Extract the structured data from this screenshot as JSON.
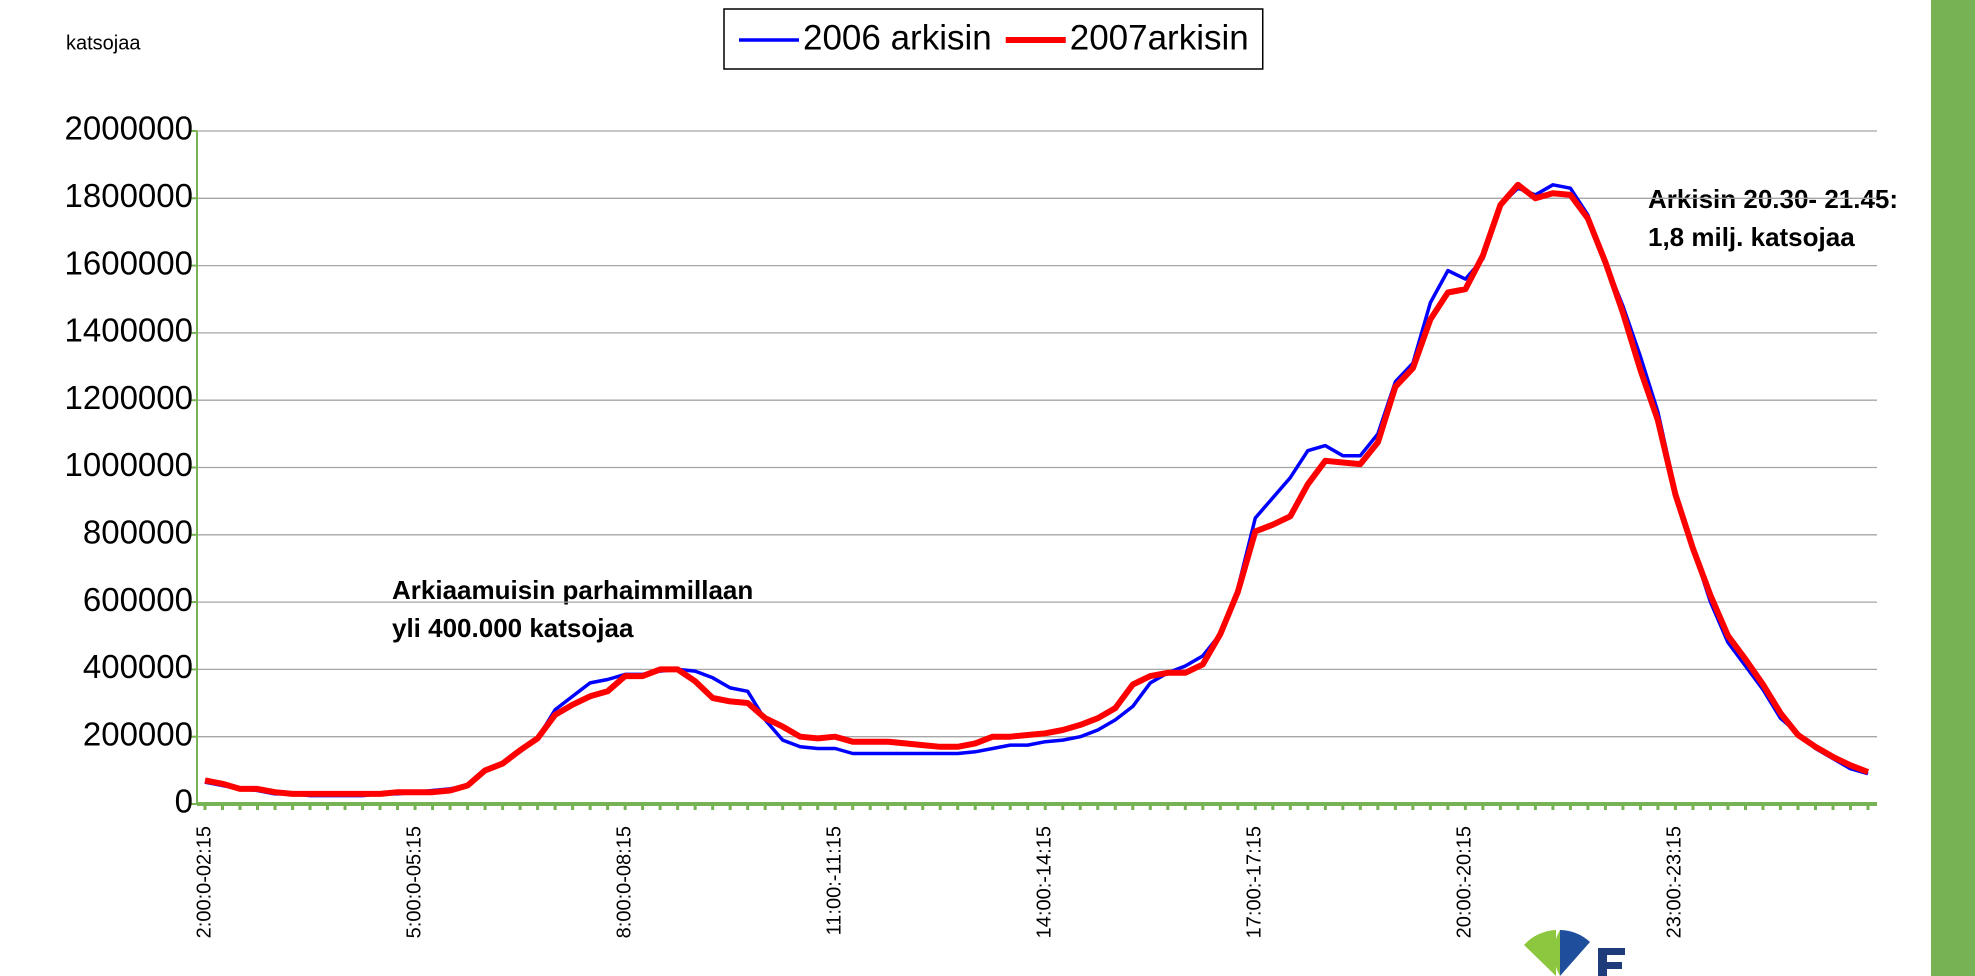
{
  "chart_data": {
    "type": "line",
    "y_label": "katsojaa",
    "categories": [
      "2:00:0-02:15",
      null,
      null,
      null,
      null,
      null,
      null,
      null,
      null,
      null,
      null,
      null,
      "5:00:0-05:15",
      null,
      null,
      null,
      null,
      null,
      null,
      null,
      null,
      null,
      null,
      null,
      "8:00:0-08:15",
      null,
      null,
      null,
      null,
      null,
      null,
      null,
      null,
      null,
      null,
      null,
      "11:00:-11:15",
      null,
      null,
      null,
      null,
      null,
      null,
      null,
      null,
      null,
      null,
      null,
      "14:00:-14:15",
      null,
      null,
      null,
      null,
      null,
      null,
      null,
      null,
      null,
      null,
      null,
      "17:00:-17:15",
      null,
      null,
      null,
      null,
      null,
      null,
      null,
      null,
      null,
      null,
      null,
      "20:00:-20:15",
      null,
      null,
      null,
      null,
      null,
      null,
      null,
      null,
      null,
      null,
      null,
      "23:00:-23:15",
      null,
      null,
      null,
      null,
      null,
      null,
      null,
      null,
      null,
      null,
      null
    ],
    "series": [
      {
        "name": "2006 arkisin",
        "color": "#0000ff",
        "values": [
          65000,
          55000,
          45000,
          40000,
          30000,
          30000,
          25000,
          25000,
          25000,
          25000,
          30000,
          30000,
          35000,
          40000,
          45000,
          55000,
          100000,
          120000,
          155000,
          195000,
          280000,
          320000,
          360000,
          370000,
          385000,
          385000,
          395000,
          400000,
          395000,
          375000,
          345000,
          335000,
          250000,
          190000,
          170000,
          165000,
          165000,
          150000,
          150000,
          150000,
          150000,
          150000,
          150000,
          150000,
          155000,
          165000,
          175000,
          175000,
          185000,
          190000,
          200000,
          220000,
          250000,
          290000,
          360000,
          390000,
          410000,
          440000,
          505000,
          640000,
          850000,
          910000,
          970000,
          1050000,
          1065000,
          1035000,
          1035000,
          1100000,
          1255000,
          1310000,
          1490000,
          1585000,
          1560000,
          1620000,
          1780000,
          1830000,
          1810000,
          1840000,
          1830000,
          1750000,
          1610000,
          1480000,
          1330000,
          1165000,
          930000,
          760000,
          600000,
          480000,
          410000,
          340000,
          255000,
          210000,
          165000,
          135000,
          105000,
          90000
        ]
      },
      {
        "name": "2007arkisin",
        "color": "#ff0000",
        "values": [
          70000,
          60000,
          45000,
          45000,
          35000,
          30000,
          30000,
          30000,
          30000,
          30000,
          30000,
          35000,
          35000,
          35000,
          40000,
          55000,
          100000,
          120000,
          160000,
          195000,
          265000,
          295000,
          320000,
          335000,
          380000,
          380000,
          400000,
          400000,
          365000,
          315000,
          305000,
          300000,
          255000,
          230000,
          200000,
          195000,
          200000,
          185000,
          185000,
          185000,
          180000,
          175000,
          170000,
          170000,
          180000,
          200000,
          200000,
          205000,
          210000,
          220000,
          235000,
          255000,
          285000,
          355000,
          380000,
          390000,
          390000,
          415000,
          505000,
          630000,
          810000,
          830000,
          855000,
          950000,
          1020000,
          1015000,
          1010000,
          1075000,
          1240000,
          1295000,
          1440000,
          1520000,
          1530000,
          1630000,
          1780000,
          1840000,
          1800000,
          1815000,
          1810000,
          1740000,
          1610000,
          1460000,
          1290000,
          1140000,
          920000,
          760000,
          620000,
          500000,
          430000,
          355000,
          270000,
          205000,
          170000,
          140000,
          115000,
          95000
        ]
      }
    ],
    "annotations": [
      "Arkiaamuisin parhaimmillaan",
      "yli 400.000 katsojaa",
      "Arkisin 20.30- 21.45:",
      "1,8 milj. katsojaa"
    ],
    "ylim": [
      0,
      2000000
    ],
    "yticks": [
      0,
      200000,
      400000,
      600000,
      800000,
      1000000,
      1200000,
      1400000,
      1600000,
      1800000,
      2000000
    ],
    "grid": true,
    "legend": "top"
  }
}
